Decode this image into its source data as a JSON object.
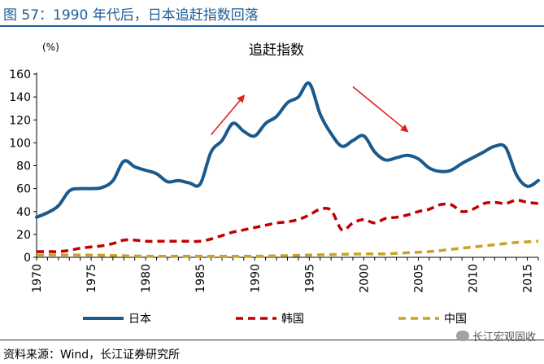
{
  "figure_title": "图 57：1990 年代后，日本追赶指数回落",
  "source": "资料来源：Wind，长江证券研究所",
  "watermark": "长江宏观固收",
  "colors": {
    "japan": "#1b5a8c",
    "korea": "#c00000",
    "china": "#c9a227",
    "arrow": "#e02020",
    "title": "#1f5c99"
  },
  "chart_data": {
    "type": "line",
    "title": "追赶指数",
    "ylabel": "(%)",
    "xlabel": "",
    "ylim": [
      0,
      160
    ],
    "yticks": [
      0,
      20,
      40,
      60,
      80,
      100,
      120,
      140,
      160
    ],
    "xlim": [
      1970,
      2016
    ],
    "xticks": [
      1970,
      1975,
      1980,
      1985,
      1990,
      1995,
      2000,
      2005,
      2010,
      2015
    ],
    "grid": false,
    "legend_position": "bottom",
    "series": [
      {
        "name": "日本",
        "color": "#1b5a8c",
        "style": "solid",
        "x": [
          1970,
          1971,
          1972,
          1973,
          1974,
          1975,
          1976,
          1977,
          1978,
          1979,
          1980,
          1981,
          1982,
          1983,
          1984,
          1985,
          1986,
          1987,
          1988,
          1989,
          1990,
          1991,
          1992,
          1993,
          1994,
          1995,
          1996,
          1997,
          1998,
          1999,
          2000,
          2001,
          2002,
          2003,
          2004,
          2005,
          2006,
          2007,
          2008,
          2009,
          2010,
          2011,
          2012,
          2013,
          2014,
          2015,
          2016
        ],
        "values": [
          35,
          39,
          45,
          58,
          60,
          60,
          61,
          67,
          84,
          79,
          76,
          73,
          66,
          67,
          65,
          64,
          92,
          102,
          117,
          110,
          106,
          117,
          123,
          135,
          140,
          152,
          125,
          108,
          97,
          102,
          106,
          92,
          85,
          87,
          89,
          86,
          78,
          75,
          76,
          82,
          87,
          92,
          97,
          96,
          72,
          62,
          67
        ]
      },
      {
        "name": "韩国",
        "color": "#c00000",
        "style": "dashed",
        "x": [
          1970,
          1971,
          1972,
          1973,
          1974,
          1975,
          1976,
          1977,
          1978,
          1979,
          1980,
          1981,
          1982,
          1983,
          1984,
          1985,
          1986,
          1987,
          1988,
          1989,
          1990,
          1991,
          1992,
          1993,
          1994,
          1995,
          1996,
          1997,
          1998,
          1999,
          2000,
          2001,
          2002,
          2003,
          2004,
          2005,
          2006,
          2007,
          2008,
          2009,
          2010,
          2011,
          2012,
          2013,
          2014,
          2015,
          2016
        ],
        "values": [
          5,
          5,
          5,
          6,
          8,
          9,
          10,
          12,
          15,
          15,
          14,
          14,
          14,
          14,
          14,
          14,
          16,
          19,
          22,
          24,
          26,
          28,
          30,
          31,
          33,
          37,
          42,
          41,
          24,
          30,
          33,
          30,
          34,
          35,
          37,
          40,
          42,
          46,
          46,
          40,
          42,
          47,
          48,
          47,
          50,
          48,
          47
        ]
      },
      {
        "name": "中国",
        "color": "#c9a227",
        "style": "dashed",
        "x": [
          1970,
          1975,
          1980,
          1985,
          1990,
          1995,
          2000,
          2002,
          2004,
          2006,
          2008,
          2010,
          2012,
          2014,
          2016
        ],
        "values": [
          2,
          2,
          1,
          1,
          1,
          2,
          3,
          3,
          4,
          5,
          7,
          9,
          11,
          13,
          14
        ]
      }
    ],
    "annotations": [
      {
        "type": "arrow",
        "direction": "up",
        "from": [
          1986,
          107
        ],
        "to": [
          1989,
          141
        ]
      },
      {
        "type": "arrow",
        "direction": "down",
        "from": [
          1999,
          149
        ],
        "to": [
          2004,
          110
        ]
      }
    ]
  }
}
